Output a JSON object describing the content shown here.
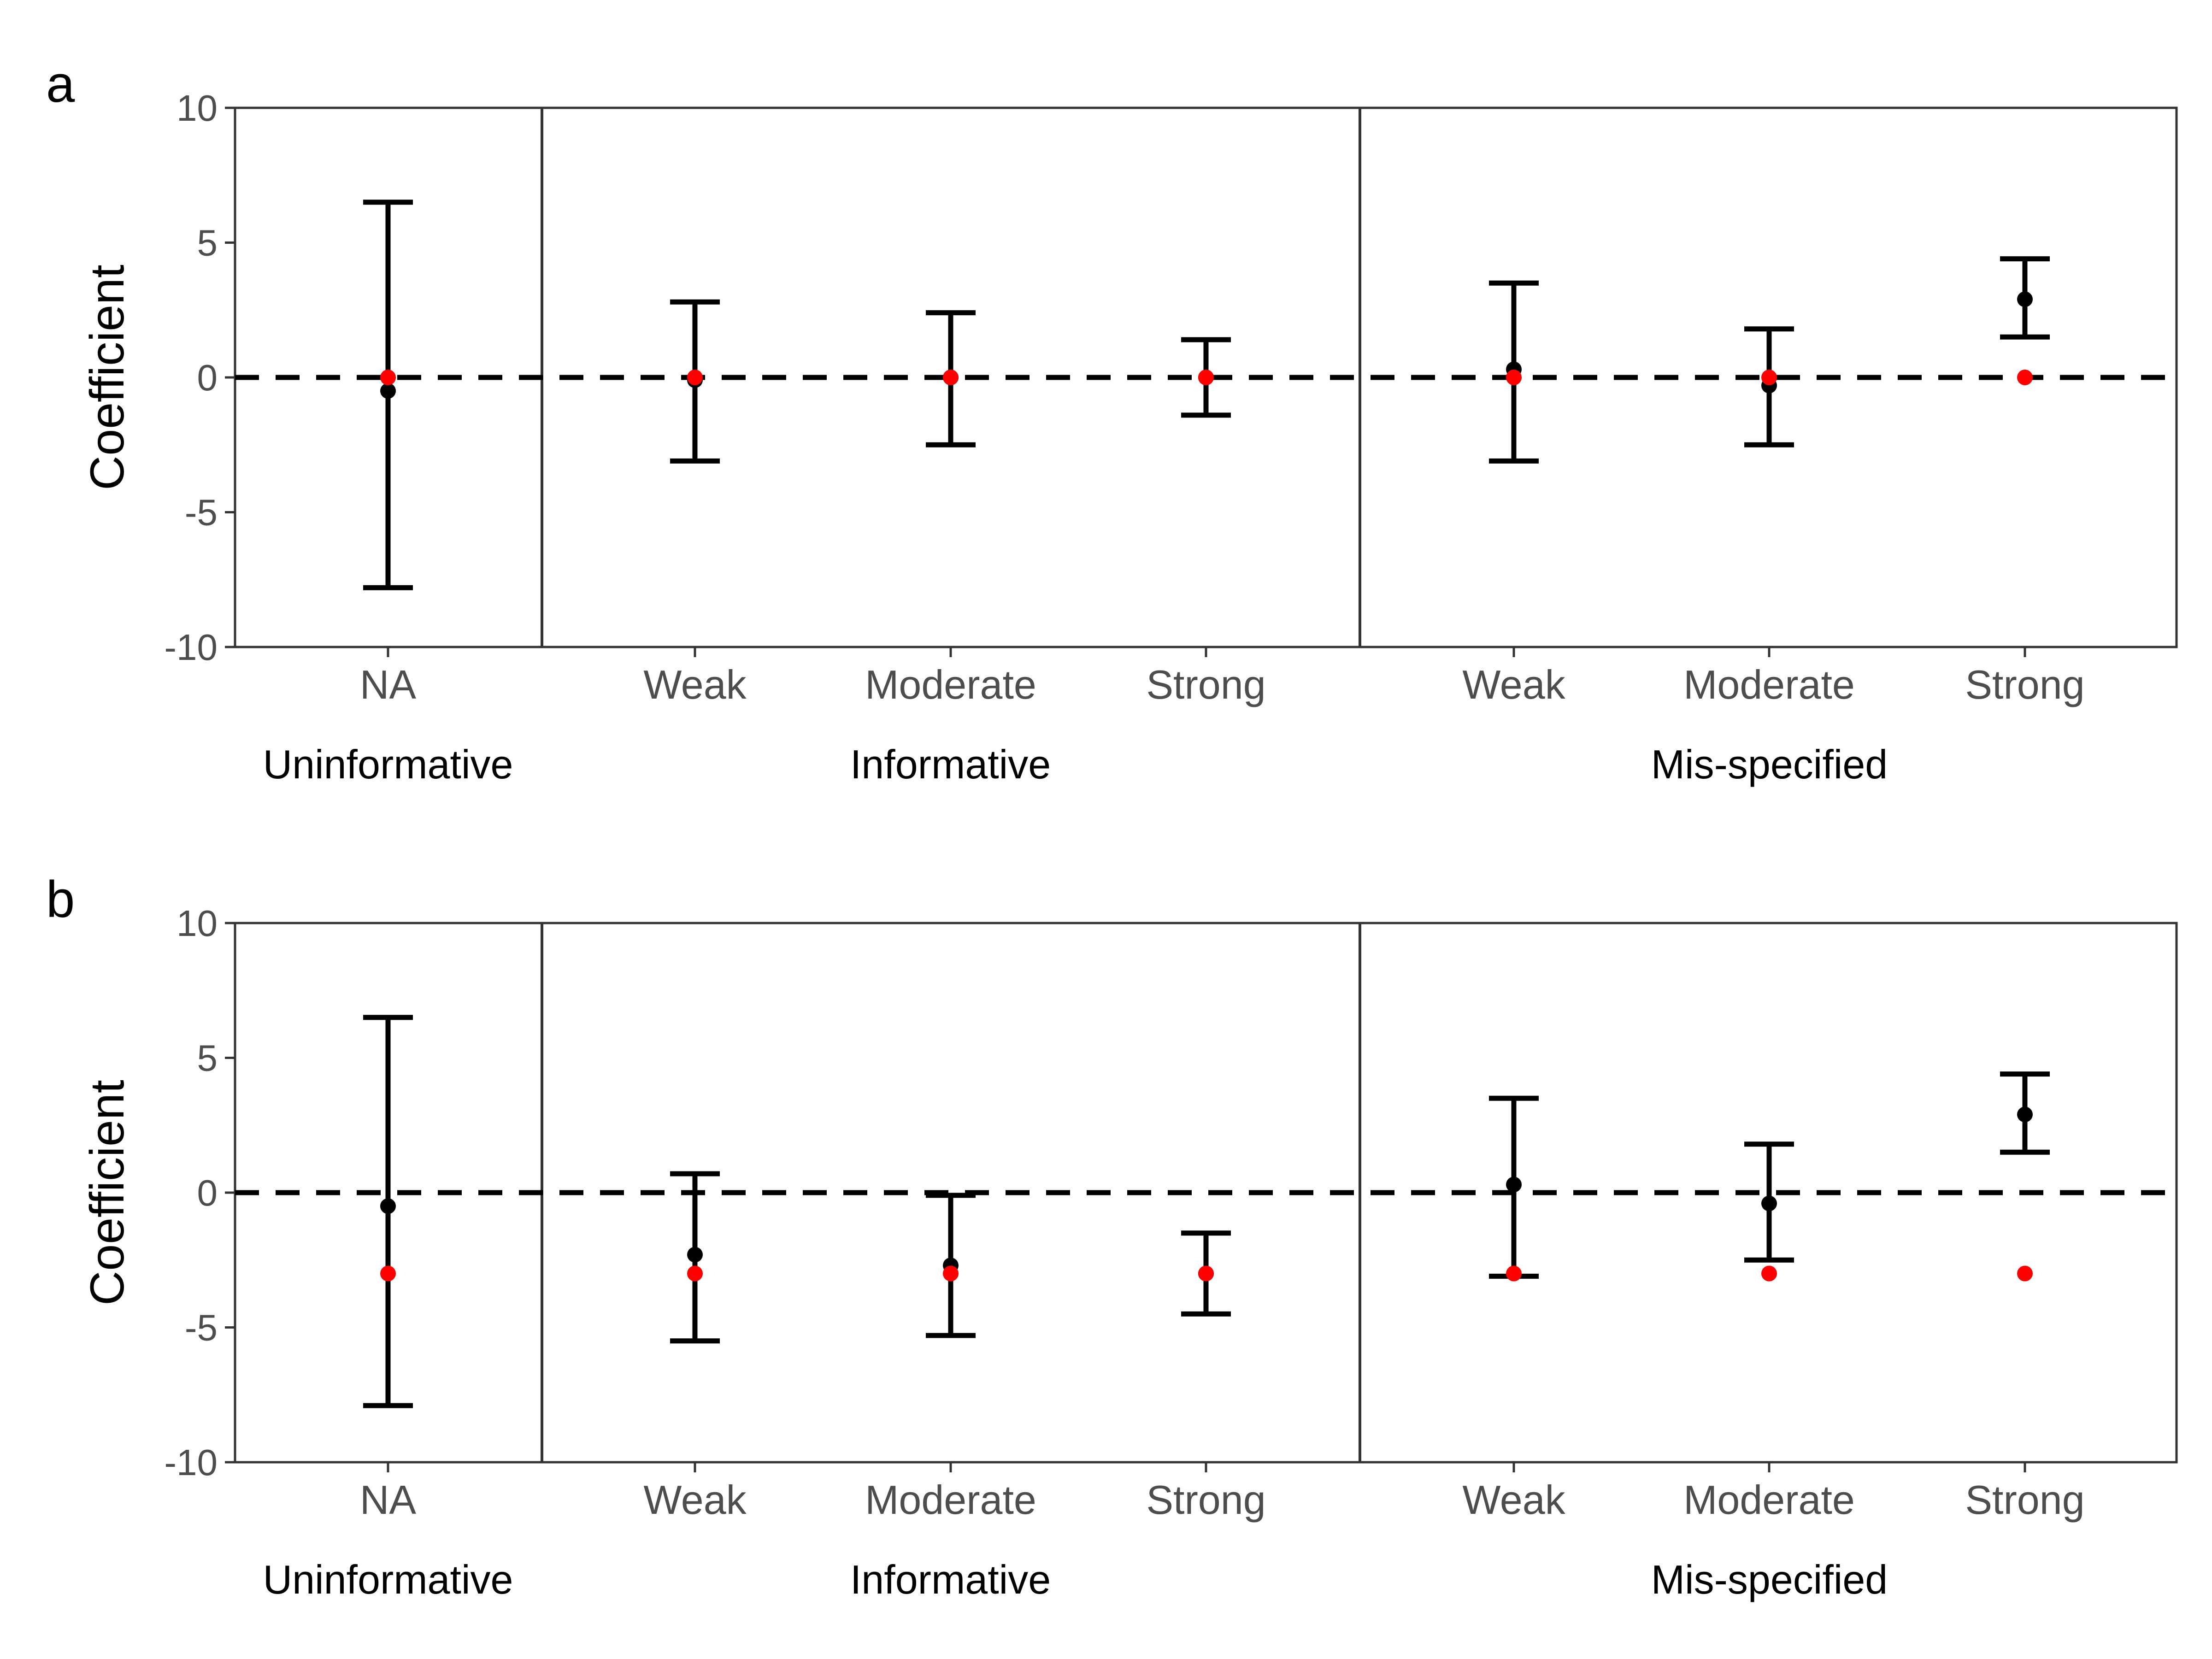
{
  "chart_data": [
    {
      "type": "scatter",
      "panel_label": "a",
      "ylabel": "Coefficient",
      "ylim": [
        -10,
        10
      ],
      "yticks": [
        -10,
        -5,
        0,
        5,
        10
      ],
      "reference_line": 0,
      "colors": {
        "estimate": "#000000",
        "true_value": "#ff0000",
        "reference": "#000000"
      },
      "groups": [
        {
          "label": "Uninformative",
          "categories": [
            {
              "label": "NA",
              "estimate": -0.5,
              "lower": -7.8,
              "upper": 6.5,
              "true_value": 0
            }
          ]
        },
        {
          "label": "Informative",
          "categories": [
            {
              "label": "Weak",
              "estimate": -0.1,
              "lower": -3.1,
              "upper": 2.8,
              "true_value": 0
            },
            {
              "label": "Moderate",
              "estimate": 0.0,
              "lower": -2.5,
              "upper": 2.4,
              "true_value": 0
            },
            {
              "label": "Strong",
              "estimate": 0.0,
              "lower": -1.4,
              "upper": 1.4,
              "true_value": 0
            }
          ]
        },
        {
          "label": "Mis-specified",
          "categories": [
            {
              "label": "Weak",
              "estimate": 0.3,
              "lower": -3.1,
              "upper": 3.5,
              "true_value": 0
            },
            {
              "label": "Moderate",
              "estimate": -0.3,
              "lower": -2.5,
              "upper": 1.8,
              "true_value": 0
            },
            {
              "label": "Strong",
              "estimate": 2.9,
              "lower": 1.5,
              "upper": 4.4,
              "true_value": 0
            }
          ]
        }
      ]
    },
    {
      "type": "scatter",
      "panel_label": "b",
      "ylabel": "Coefficient",
      "ylim": [
        -10,
        10
      ],
      "yticks": [
        -10,
        -5,
        0,
        5,
        10
      ],
      "reference_line": 0,
      "colors": {
        "estimate": "#000000",
        "true_value": "#ff0000",
        "reference": "#000000"
      },
      "groups": [
        {
          "label": "Uninformative",
          "categories": [
            {
              "label": "NA",
              "estimate": -0.5,
              "lower": -7.9,
              "upper": 6.5,
              "true_value": -3
            }
          ]
        },
        {
          "label": "Informative",
          "categories": [
            {
              "label": "Weak",
              "estimate": -2.3,
              "lower": -5.5,
              "upper": 0.7,
              "true_value": -3
            },
            {
              "label": "Moderate",
              "estimate": -2.7,
              "lower": -5.3,
              "upper": -0.1,
              "true_value": -3
            },
            {
              "label": "Strong",
              "estimate": -3.0,
              "lower": -4.5,
              "upper": -1.5,
              "true_value": -3
            }
          ]
        },
        {
          "label": "Mis-specified",
          "categories": [
            {
              "label": "Weak",
              "estimate": 0.3,
              "lower": -3.1,
              "upper": 3.5,
              "true_value": -3
            },
            {
              "label": "Moderate",
              "estimate": -0.4,
              "lower": -2.5,
              "upper": 1.8,
              "true_value": -3
            },
            {
              "label": "Strong",
              "estimate": 2.9,
              "lower": 1.5,
              "upper": 4.4,
              "true_value": -3
            }
          ]
        }
      ]
    }
  ]
}
